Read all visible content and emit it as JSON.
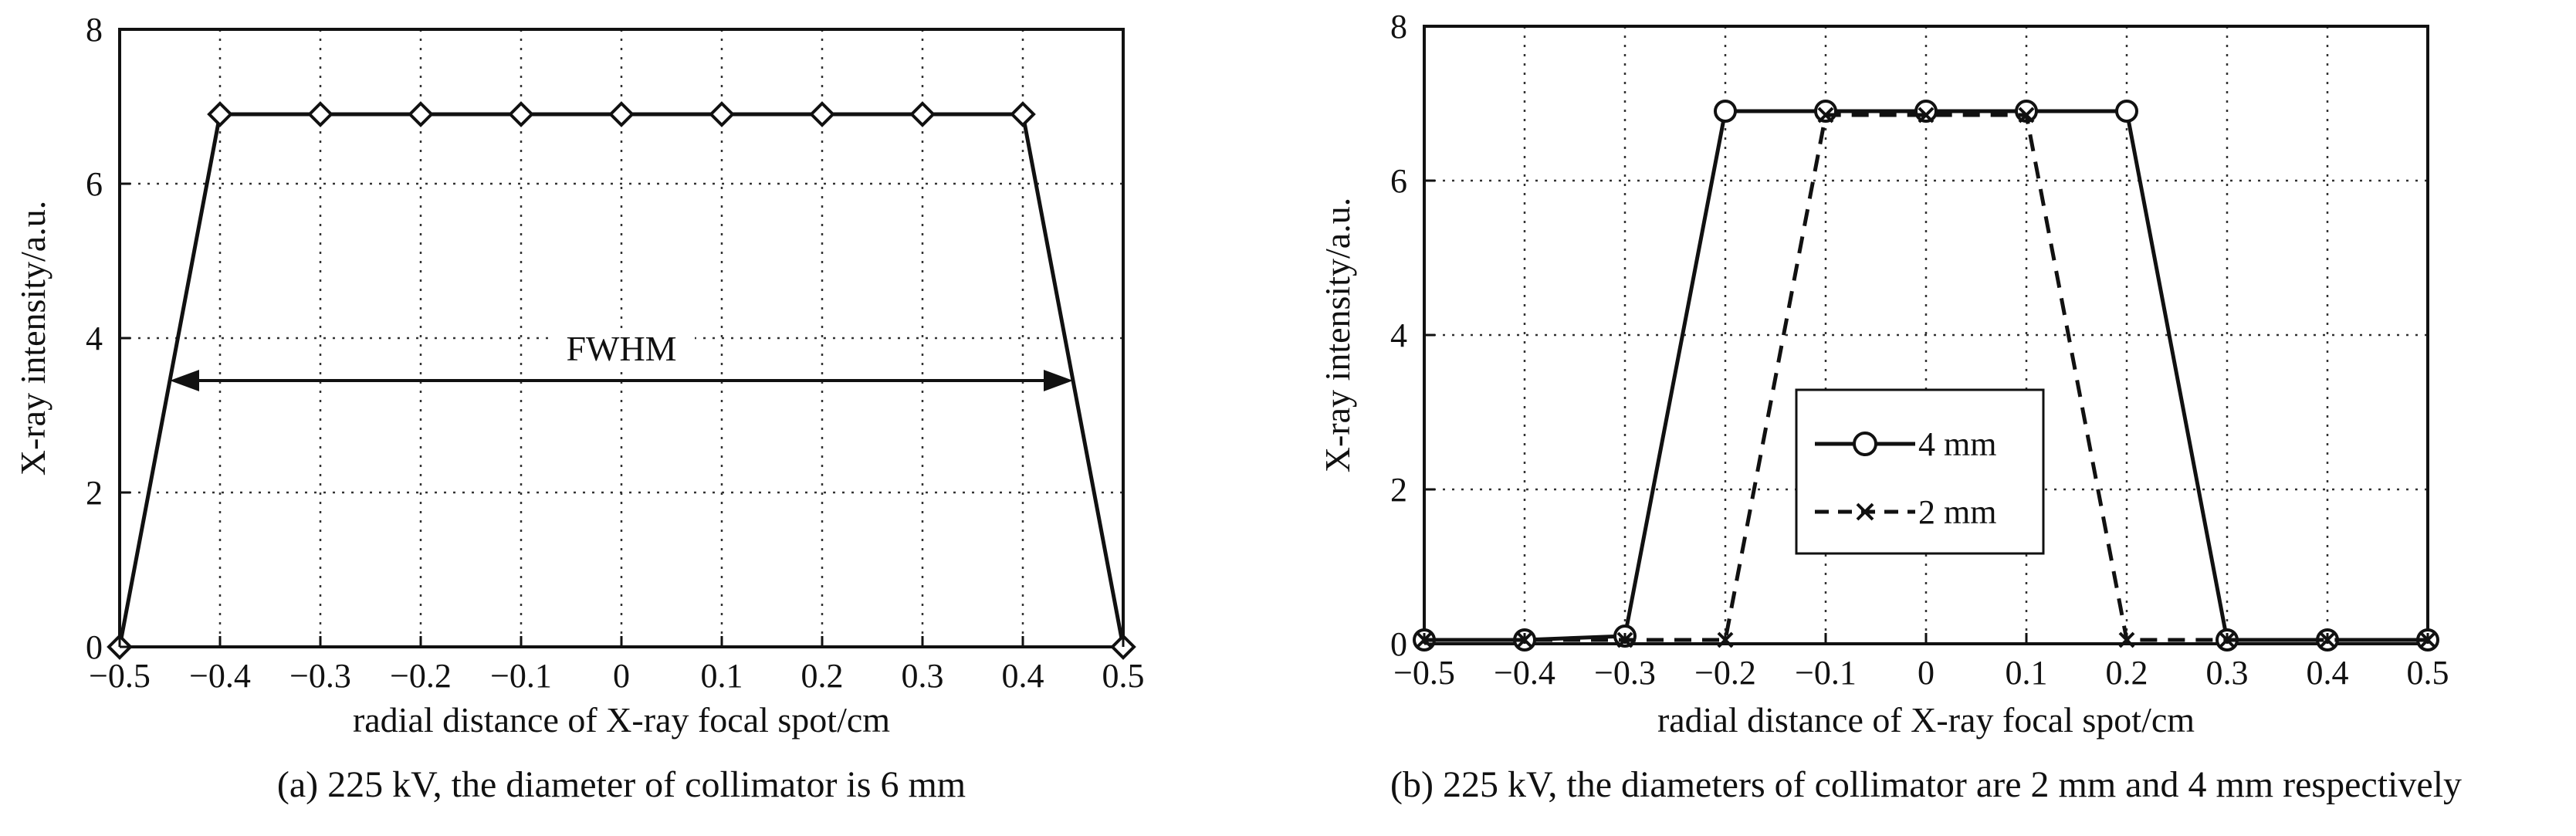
{
  "chart_data": [
    {
      "type": "line",
      "caption": "(a) 225 kV, the diameter of collimator is 6 mm",
      "xlabel": "radial distance of X-ray focal spot/cm",
      "ylabel": "X-ray intensity/a.u.",
      "xlim": [
        -0.5,
        0.5
      ],
      "ylim": [
        0,
        8
      ],
      "xticks": [
        -0.5,
        -0.4,
        -0.3,
        -0.2,
        -0.1,
        0,
        0.1,
        0.2,
        0.3,
        0.4,
        0.5
      ],
      "xtick_labels": [
        "−0.5",
        "−0.4",
        "−0.3",
        "−0.2",
        "−0.1",
        "0",
        "0.1",
        "0.2",
        "0.3",
        "0.4",
        "0.5"
      ],
      "yticks": [
        0,
        2,
        4,
        6,
        8
      ],
      "ytick_labels": [
        "0",
        "2",
        "4",
        "6",
        "8"
      ],
      "grid": true,
      "series": [
        {
          "marker": "diamond",
          "linestyle": "solid",
          "x": [
            -0.5,
            -0.4,
            -0.3,
            -0.2,
            -0.1,
            0,
            0.1,
            0.2,
            0.3,
            0.4,
            0.5
          ],
          "y": [
            0,
            6.9,
            6.9,
            6.9,
            6.9,
            6.9,
            6.9,
            6.9,
            6.9,
            6.9,
            0
          ]
        }
      ],
      "annotations": [
        {
          "text": "FWHM",
          "arrow_from": -0.45,
          "arrow_to": 0.45,
          "y": 3.45
        }
      ]
    },
    {
      "type": "line",
      "caption": "(b) 225 kV, the diameters of collimator are 2 mm and 4 mm respectively",
      "xlabel": "radial distance of X-ray focal spot/cm",
      "ylabel": "X-ray intensity/a.u.",
      "xlim": [
        -0.5,
        0.5
      ],
      "ylim": [
        0,
        8
      ],
      "xticks": [
        -0.5,
        -0.4,
        -0.3,
        -0.2,
        -0.1,
        0,
        0.1,
        0.2,
        0.3,
        0.4,
        0.5
      ],
      "xtick_labels": [
        "−0.5",
        "−0.4",
        "−0.3",
        "−0.2",
        "−0.1",
        "0",
        "0.1",
        "0.2",
        "0.3",
        "0.4",
        "0.5"
      ],
      "yticks": [
        0,
        2,
        4,
        6,
        8
      ],
      "ytick_labels": [
        "0",
        "2",
        "4",
        "6",
        "8"
      ],
      "grid": true,
      "legend_position": "center-left",
      "series": [
        {
          "name": "4 mm",
          "marker": "circle",
          "linestyle": "solid",
          "x": [
            -0.5,
            -0.4,
            -0.3,
            -0.2,
            -0.1,
            0,
            0.1,
            0.2,
            0.3,
            0.4,
            0.5
          ],
          "y": [
            0.05,
            0.05,
            0.1,
            6.9,
            6.9,
            6.9,
            6.9,
            6.9,
            0.05,
            0.05,
            0.05
          ]
        },
        {
          "name": "2 mm",
          "marker": "x",
          "linestyle": "dashed",
          "x": [
            -0.5,
            -0.4,
            -0.3,
            -0.2,
            -0.1,
            0,
            0.1,
            0.2,
            0.3,
            0.4,
            0.5
          ],
          "y": [
            0.05,
            0.05,
            0.05,
            0.05,
            6.85,
            6.85,
            6.85,
            0.05,
            0.05,
            0.05,
            0.05
          ]
        }
      ]
    }
  ]
}
